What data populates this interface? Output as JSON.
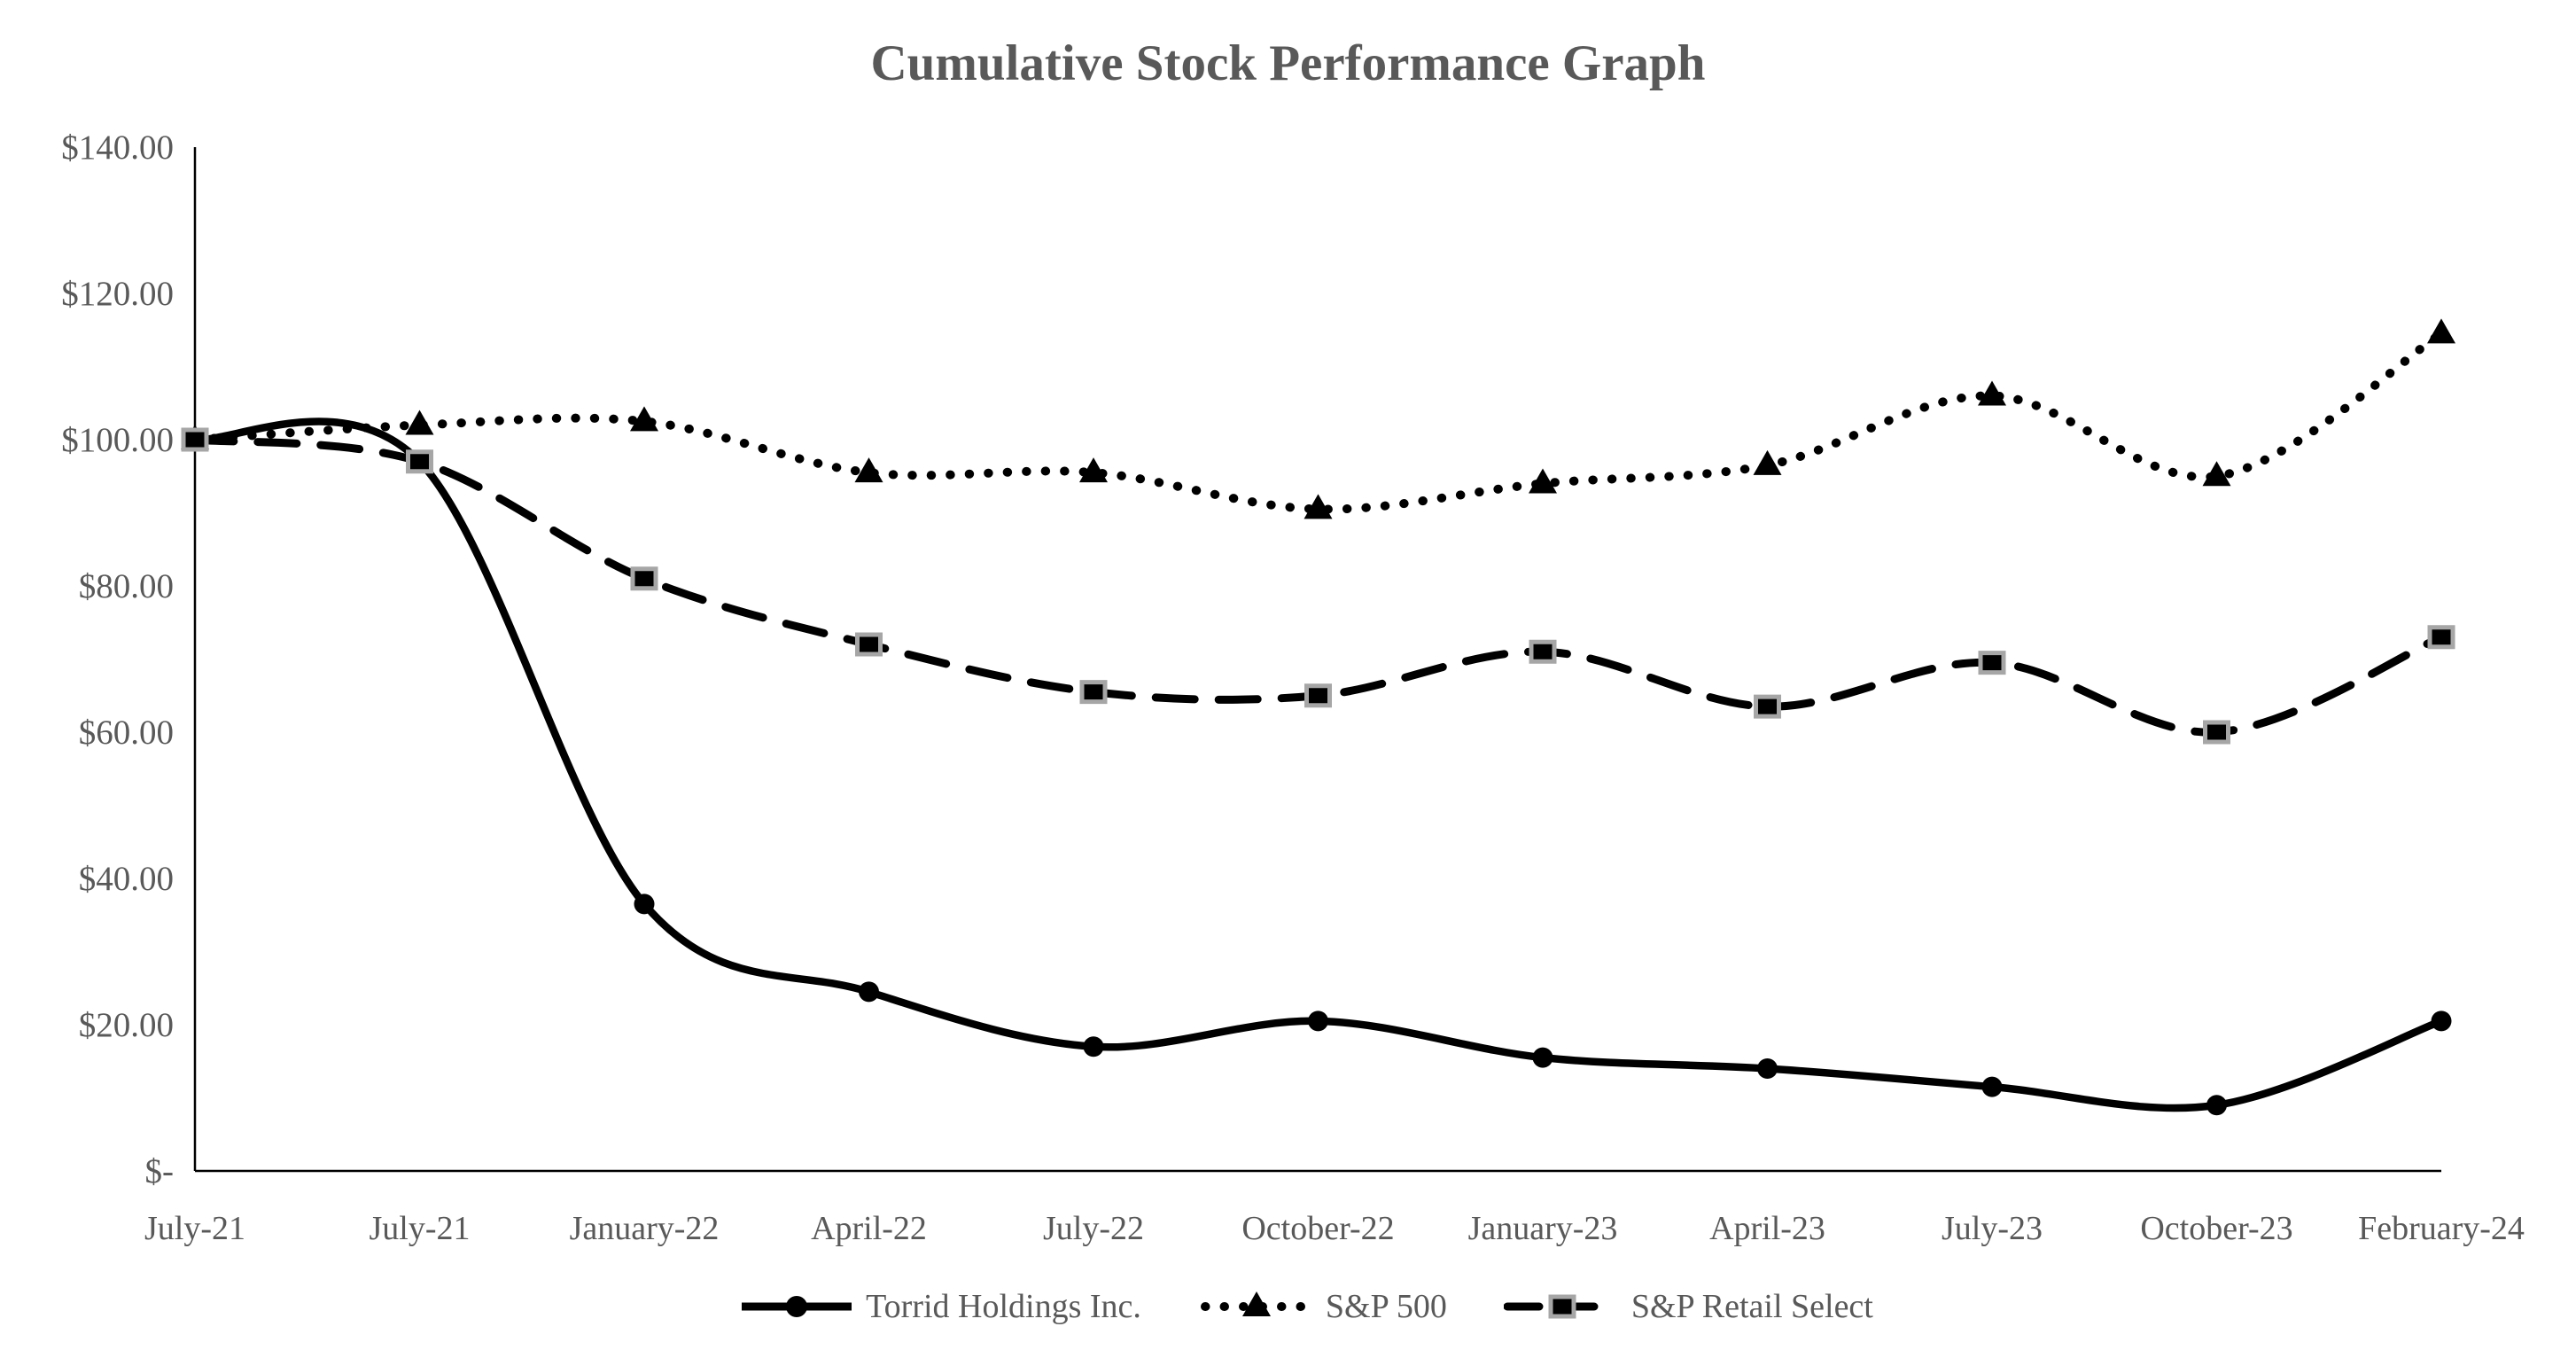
{
  "page": {
    "background_color": "#FFFFFF",
    "text_color": "#595959",
    "axis_color": "#000000",
    "series_color": "#000000",
    "square_marker_border_color": "#A6A6A6"
  },
  "chart_data": {
    "type": "line",
    "title": "Cumulative Stock Performance Graph",
    "xlabel": "",
    "ylabel": "",
    "ylim": [
      0,
      140
    ],
    "grid": false,
    "line_smoothing": true,
    "legend_position": "bottom",
    "categories": [
      "July-21",
      "July-21",
      "January-22",
      "April-22",
      "July-22",
      "October-22",
      "January-23",
      "April-23",
      "July-23",
      "October-23",
      "February-24"
    ],
    "y_ticks": [
      140,
      120,
      100,
      80,
      60,
      40,
      20,
      0
    ],
    "y_tick_labels": [
      "$140.00",
      "$120.00",
      "$100.00",
      "$80.00",
      "$60.00",
      "$40.00",
      "$20.00",
      "$-"
    ],
    "series": [
      {
        "name": "Torrid Holdings Inc.",
        "line_style": "solid",
        "marker": "circle",
        "color": "#000000",
        "values": [
          100,
          97,
          36.5,
          24.5,
          17,
          20.5,
          15.5,
          14,
          11.5,
          9,
          20.5
        ]
      },
      {
        "name": "S&P 500",
        "line_style": "dotted",
        "marker": "triangle",
        "color": "#000000",
        "values": [
          100,
          102,
          102.5,
          95.5,
          95.5,
          90.5,
          94,
          96.5,
          106,
          95,
          114.5
        ]
      },
      {
        "name": "S&P Retail Select",
        "line_style": "dashed",
        "marker": "square",
        "color": "#000000",
        "marker_border": "#A6A6A6",
        "values": [
          100,
          97,
          81,
          72,
          65.5,
          65,
          71,
          63.5,
          69.5,
          60,
          73
        ]
      }
    ]
  }
}
